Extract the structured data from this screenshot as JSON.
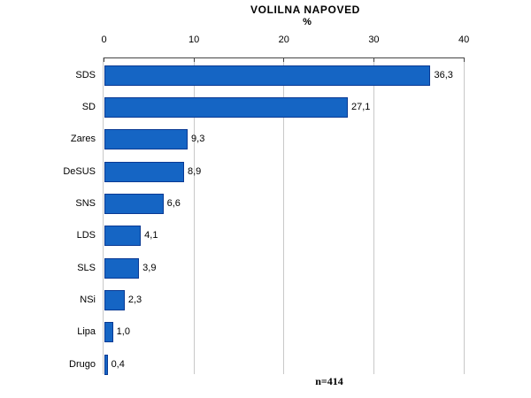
{
  "chart_data": {
    "type": "bar",
    "orientation": "horizontal",
    "title": "VOLILNA NAPOVED",
    "unit_label": "%",
    "footnote": "n=414",
    "categories": [
      "SDS",
      "SD",
      "Zares",
      "DeSUS",
      "SNS",
      "LDS",
      "SLS",
      "NSi",
      "Lipa",
      "Drugo"
    ],
    "values": [
      36.3,
      27.1,
      9.3,
      8.9,
      6.6,
      4.1,
      3.9,
      2.3,
      1.0,
      0.4
    ],
    "value_labels": [
      "36,3",
      "27,1",
      "9,3",
      "8,9",
      "6,6",
      "4,1",
      "3,9",
      "2,3",
      "1,0",
      "0,4"
    ],
    "x_ticks": [
      0,
      10,
      20,
      30,
      40
    ],
    "xlim": [
      0,
      40
    ],
    "grid": true,
    "legend": "none",
    "colors": {
      "bar_fill": "#1565C4",
      "bar_border": "#0A3A94",
      "gridline": "#C8C8C8",
      "axis_line": "#444444",
      "text": "#000000",
      "background": "#FFFFFF"
    }
  }
}
